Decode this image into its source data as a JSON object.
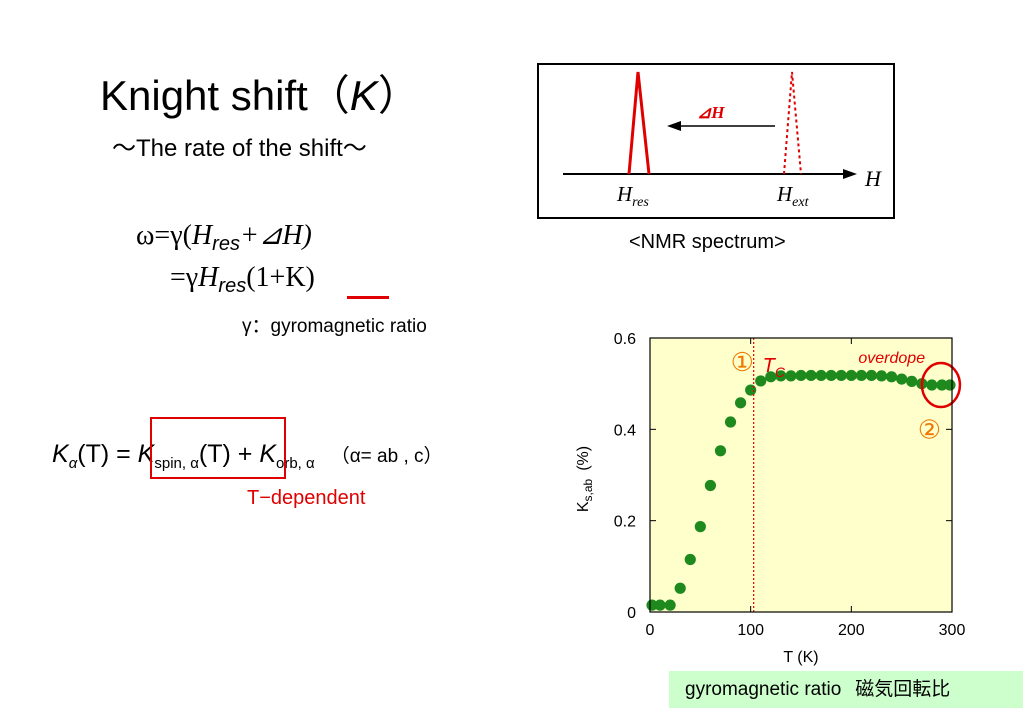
{
  "title": {
    "text": "Knight shift（",
    "symbol": "K",
    "close": "）"
  },
  "subtitle": "～The rate of the shift～",
  "equations": {
    "line1_prefix": "ω=γ(",
    "h": "H",
    "res": "res",
    "line1_suffix": "+⊿H)",
    "line2_prefix": "=γ",
    "line2_suffix": "(1+K)"
  },
  "gamma_note": "γ：gyromagnetic ratio",
  "formula": {
    "k": "K",
    "alpha": "α",
    "t": "(T)",
    "eq": " = ",
    "spin_sub": "spin, α",
    "plus": " + ",
    "orb_sub": "orb, α",
    "cond": "（α= ab , c）"
  },
  "t_dependent": "T−dependent",
  "nmr": {
    "delta_h": "⊿H",
    "axis_label": "H",
    "h_res": {
      "main": "H",
      "sub": "res"
    },
    "h_ext": {
      "main": "H",
      "sub": "ext"
    },
    "caption": "<NMR spectrum>",
    "colors": {
      "peak": "#e00000",
      "axis": "#000000"
    }
  },
  "chart_data": {
    "type": "scatter",
    "xlabel": "T (K)",
    "ylabel": "K",
    "ylabel_sub": "s,ab",
    "ylabel_unit": "(%)",
    "xlim": [
      0,
      300
    ],
    "ylim": [
      0,
      0.6
    ],
    "x_ticks": [
      "0",
      "100",
      "200",
      "300"
    ],
    "y_ticks": [
      "0",
      "0.2",
      "0.4",
      "0.6"
    ],
    "x_tick_values": [
      0,
      100,
      200,
      300
    ],
    "y_tick_values": [
      0,
      0.2,
      0.4,
      0.6
    ],
    "background": "#ffffcc",
    "marker_color": "#1e8a1e",
    "series": [
      {
        "points": [
          [
            2,
            0.015
          ],
          [
            10,
            0.015
          ],
          [
            20,
            0.015
          ],
          [
            30,
            0.052
          ],
          [
            40,
            0.115
          ],
          [
            50,
            0.187
          ],
          [
            60,
            0.277
          ],
          [
            70,
            0.353
          ],
          [
            80,
            0.416
          ],
          [
            90,
            0.458
          ],
          [
            100,
            0.486
          ],
          [
            110,
            0.506
          ],
          [
            120,
            0.515
          ],
          [
            130,
            0.517
          ],
          [
            140,
            0.517
          ],
          [
            150,
            0.518
          ],
          [
            160,
            0.518
          ],
          [
            170,
            0.518
          ],
          [
            180,
            0.518
          ],
          [
            190,
            0.518
          ],
          [
            200,
            0.518
          ],
          [
            210,
            0.518
          ],
          [
            220,
            0.518
          ],
          [
            230,
            0.517
          ],
          [
            240,
            0.515
          ],
          [
            250,
            0.51
          ],
          [
            260,
            0.505
          ],
          [
            270,
            0.5
          ],
          [
            280,
            0.497
          ],
          [
            290,
            0.497
          ],
          [
            298,
            0.497
          ]
        ]
      }
    ],
    "annotations": {
      "tc_marker": "①",
      "tc_label": "T",
      "tc_sub": "C",
      "tc_x": 103,
      "overdope": "overdope",
      "marker2": "②",
      "accent_color": "#e00000",
      "marker_text_color": "#f07800"
    }
  },
  "footer": {
    "en": "gyromagnetic ratio",
    "jp": "磁気回転比"
  }
}
